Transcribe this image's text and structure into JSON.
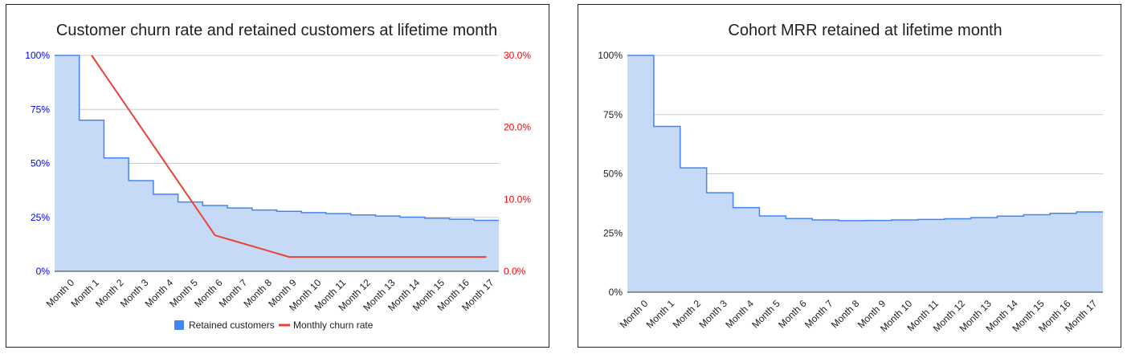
{
  "chart_data": [
    {
      "type": "area",
      "title": "Customer churn rate and retained customers at lifetime month",
      "categories": [
        "Month 0",
        "Month 1",
        "Month 2",
        "Month 3",
        "Month 4",
        "Month 5",
        "Month 6",
        "Month 7",
        "Month 8",
        "Month 9",
        "Month 10",
        "Month 11",
        "Month 12",
        "Month 13",
        "Month 14",
        "Month 15",
        "Month 16",
        "Month 17"
      ],
      "series": [
        {
          "name": "Retained customers",
          "axis": "left",
          "style": "stepped-area",
          "color": "#4285f4",
          "values": [
            100,
            70,
            52.5,
            42,
            35.7,
            32.1,
            30.5,
            29.3,
            28.4,
            27.8,
            27.2,
            26.7,
            26.1,
            25.6,
            25.1,
            24.6,
            24.1,
            23.6
          ]
        },
        {
          "name": "Monthly churn rate",
          "axis": "right",
          "style": "line",
          "color": "#ea4335",
          "values": [
            null,
            30.0,
            25.0,
            20.0,
            15.0,
            10.0,
            5.0,
            4.0,
            3.0,
            2.0,
            2.0,
            2.0,
            2.0,
            2.0,
            2.0,
            2.0,
            2.0,
            2.0
          ]
        }
      ],
      "y_left": {
        "range": [
          0,
          100
        ],
        "ticks": [
          "0%",
          "25%",
          "50%",
          "75%",
          "100%"
        ],
        "color": "#0000ff"
      },
      "y_right": {
        "range": [
          0,
          30
        ],
        "ticks": [
          "0.0%",
          "10.0%",
          "20.0%",
          "30.0%"
        ],
        "color": "#ff0000"
      },
      "legend": {
        "placement": "bottom",
        "items": [
          "Retained customers",
          "Monthly churn rate"
        ]
      }
    },
    {
      "type": "area",
      "title": "Cohort MRR retained at lifetime month",
      "categories": [
        "Month 0",
        "Month 1",
        "Month 2",
        "Month 3",
        "Month 4",
        "Month 5",
        "Month 6",
        "Month 7",
        "Month 8",
        "Month 9",
        "Month 10",
        "Month 11",
        "Month 12",
        "Month 13",
        "Month 14",
        "Month 15",
        "Month 16",
        "Month 17"
      ],
      "series": [
        {
          "name": "Cohort MRR retained",
          "axis": "left",
          "style": "stepped-area",
          "color": "#4285f4",
          "values": [
            100,
            70,
            52.5,
            42,
            35.7,
            32.2,
            31.1,
            30.5,
            30.2,
            30.3,
            30.5,
            30.7,
            31.0,
            31.5,
            32.1,
            32.7,
            33.3,
            33.9
          ]
        }
      ],
      "y_left": {
        "range": [
          0,
          100
        ],
        "ticks": [
          "0%",
          "25%",
          "50%",
          "75%",
          "100%"
        ],
        "color": "#202124"
      }
    }
  ]
}
